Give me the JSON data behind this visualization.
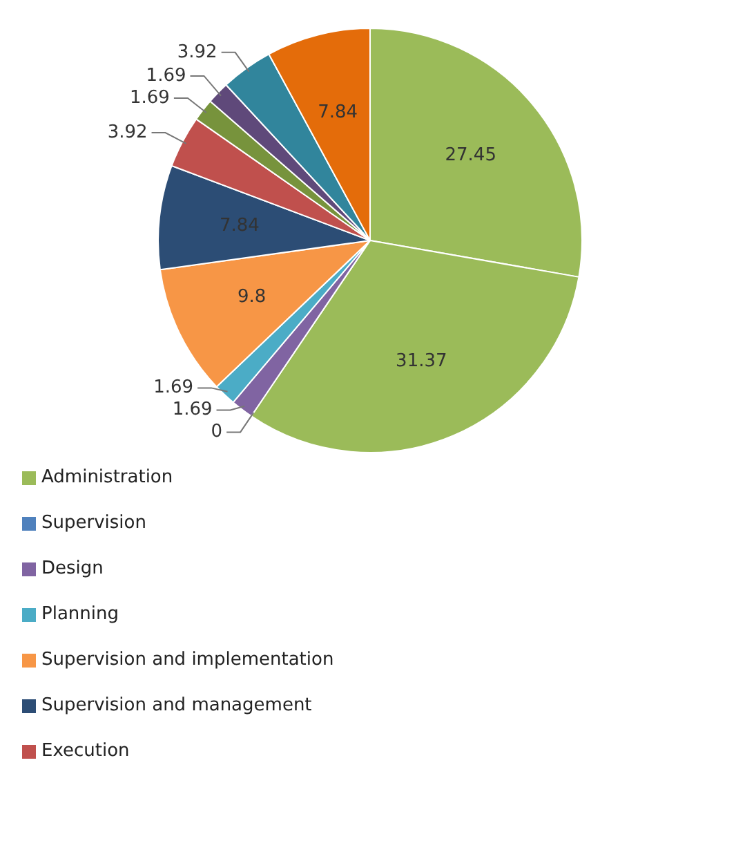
{
  "chart_data": {
    "type": "pie",
    "categories": [
      "Administration",
      null,
      "Supervision",
      "Design",
      "Planning",
      "Supervision and implementation",
      "Supervision and management",
      "Execution",
      null,
      null,
      null,
      null
    ],
    "values": [
      27.45,
      31.37,
      0,
      1.69,
      1.69,
      9.8,
      7.84,
      3.92,
      1.69,
      1.69,
      3.92,
      7.84
    ],
    "colors": [
      "#9bbb59",
      "#9bbb59",
      "#4f81bd",
      "#8064a2",
      "#4bacc6",
      "#f79646",
      "#2c4d75",
      "#c0504d",
      "#77933c",
      "#5f497a",
      "#31859c",
      "#e46c0a"
    ],
    "value_labels": [
      "27.45",
      "31.37",
      "0",
      "1.69",
      "1.69",
      "9.8",
      "7.84",
      "3.92",
      "1.69",
      "1.69",
      "3.92",
      "7.84"
    ],
    "legend": "bottom"
  }
}
